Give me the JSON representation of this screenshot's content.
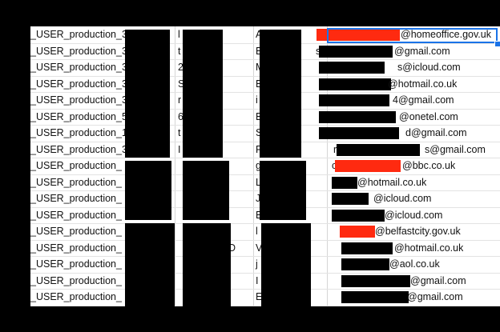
{
  "rows": [
    {
      "user": "_USER_production_3",
      "email": "@homeoffice.gov.uk",
      "left_frag": "A"
    },
    {
      "user": "_USER_production_3",
      "email": "@gmail.com",
      "email_prefix": "s",
      "left_frag": "B"
    },
    {
      "user": "_USER_production_3",
      "email": "s@icloud.com",
      "left_frag": "M"
    },
    {
      "user": "_USER_production_3",
      "email": "@hotmail.co.uk",
      "left_frag": "E"
    },
    {
      "user": "_USER_production_3",
      "email": "4@gmail.com",
      "left_frag": "i"
    },
    {
      "user": "_USER_production_5",
      "email": "@onetel.com",
      "left_frag": "B"
    },
    {
      "user": "_USER_production_1",
      "email": "d@gmail.com",
      "left_frag": "S"
    },
    {
      "user": "_USER_production_3",
      "email": "s@gmail.com",
      "email_prefix": "r",
      "left_frag": "R"
    },
    {
      "user": "_USER_production_",
      "email": "@bbc.co.uk",
      "left_frag": "g",
      "email_prefix": "c"
    },
    {
      "user": "_USER_production_",
      "email": "@hotmail.co.uk",
      "left_frag": "L"
    },
    {
      "user": "_USER_production_",
      "email": "@icloud.com",
      "left_frag": "J"
    },
    {
      "user": "_USER_production_",
      "email": "@icloud.com",
      "left_frag": "E"
    },
    {
      "user": "_USER_production_",
      "email": "@belfastcity.gov.uk",
      "left_frag": "l"
    },
    {
      "user": "_USER_production_",
      "email": "@hotmail.co.uk",
      "left_frag": "V",
      "col2_frag": "D"
    },
    {
      "user": "_USER_production_",
      "email": "@aol.co.uk",
      "left_frag": "j"
    },
    {
      "user": "_USER_production_",
      "email": "@gmail.com",
      "left_frag": "I"
    },
    {
      "user": "_USER_production_",
      "email": "@gmail.com",
      "left_frag": "E"
    }
  ],
  "col2_frags": [
    "l",
    "t",
    "2",
    "S",
    "r",
    "6",
    "t",
    "I"
  ],
  "col3_frags": [
    "e",
    "e",
    "e",
    "e",
    "e",
    "e",
    "f",
    "o"
  ],
  "colors": {
    "redaction_red": "#ff2a10",
    "selection_blue": "#1a73e8"
  }
}
